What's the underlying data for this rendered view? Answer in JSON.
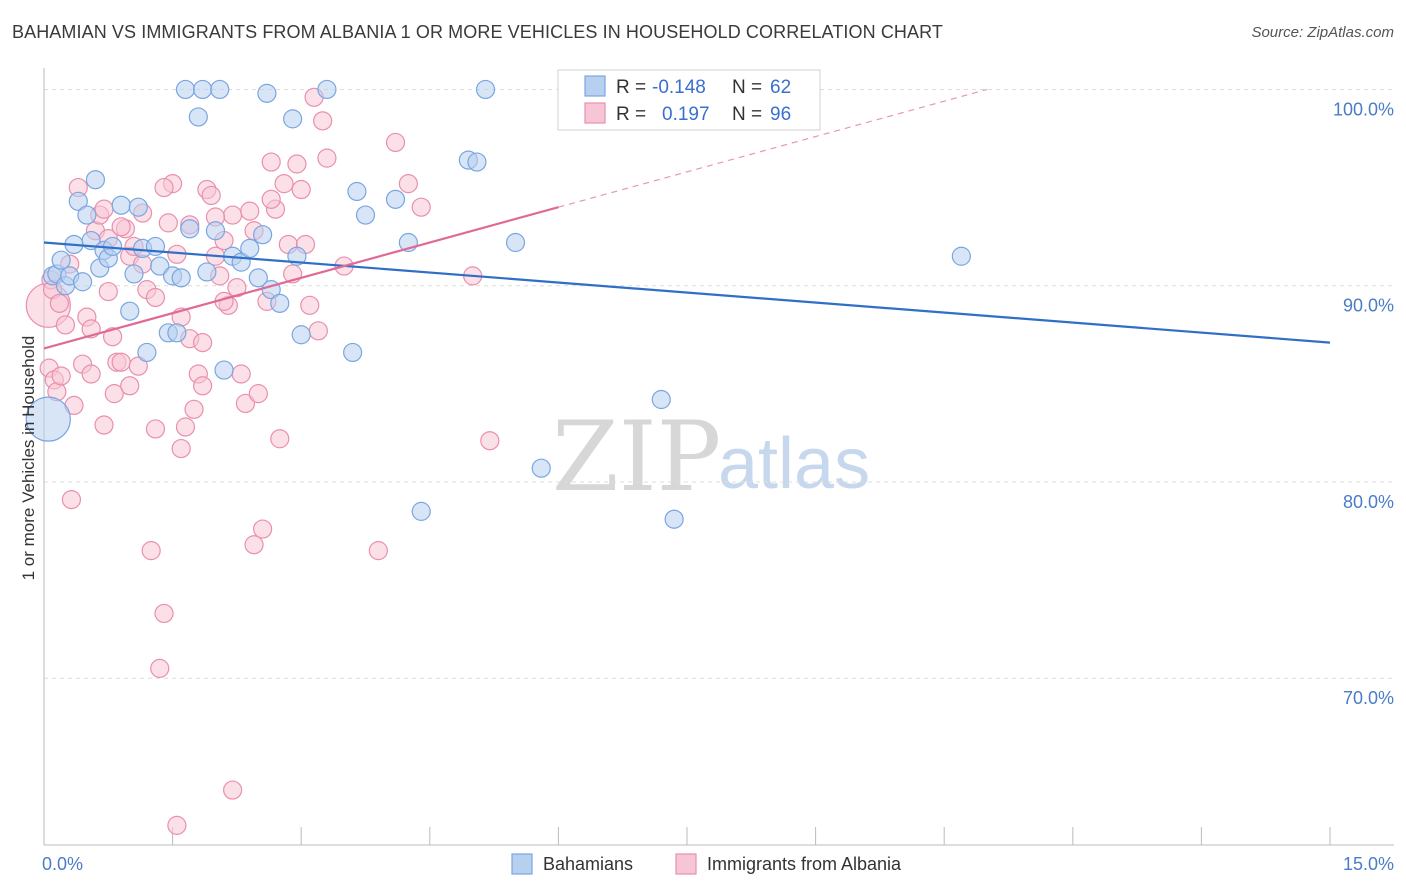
{
  "header": {
    "title": "BAHAMIAN VS IMMIGRANTS FROM ALBANIA 1 OR MORE VEHICLES IN HOUSEHOLD CORRELATION CHART",
    "source": "Source: ZipAtlas.com"
  },
  "watermark": {
    "zip": "ZIP",
    "atlas": "atlas"
  },
  "legend_top": {
    "rows": [
      {
        "r_label": "R =",
        "r_value": "-0.148",
        "n_label": "N =",
        "n_value": "62"
      },
      {
        "r_label": "R =",
        "r_value": "0.197",
        "n_label": "N =",
        "n_value": "96"
      }
    ]
  },
  "legend_bottom": {
    "series_a": "Bahamians",
    "series_b": "Immigrants from Albania"
  },
  "colors": {
    "blue_fill": "#b8d0f0",
    "blue_stroke": "#7aa6e0",
    "blue_line": "#2f6fc7",
    "pink_fill": "#f7c6d6",
    "pink_stroke": "#ea8fae",
    "pink_line": "#e06a96",
    "grid": "#dcdcdc",
    "axis_label": "#4a7cc7"
  },
  "chart_data": {
    "type": "scatter",
    "title": "BAHAMIAN VS IMMIGRANTS FROM ALBANIA 1 OR MORE VEHICLES IN HOUSEHOLD CORRELATION CHART",
    "xlabel": "",
    "ylabel": "1 or more Vehicles in Household",
    "xlim": [
      0,
      15
    ],
    "ylim": [
      61.5,
      101.5
    ],
    "x_tick_labels": {
      "min": "0.0%",
      "max": "15.0%"
    },
    "y_ticks": [
      {
        "value": 70,
        "label": "70.0%"
      },
      {
        "value": 80,
        "label": "80.0%"
      },
      {
        "value": 90,
        "label": "90.0%"
      },
      {
        "value": 100,
        "label": "100.0%"
      }
    ],
    "series": [
      {
        "name": "Bahamians",
        "color": "blue",
        "r": -0.148,
        "n": 62,
        "trend": {
          "x0": 0,
          "y0": 92.2,
          "x1": 15,
          "y1": 87.1
        },
        "points": [
          [
            0.05,
            83.2,
            "big"
          ],
          [
            0.1,
            90.5
          ],
          [
            0.15,
            90.6
          ],
          [
            0.2,
            91.3
          ],
          [
            0.25,
            90.0
          ],
          [
            0.3,
            90.5
          ],
          [
            0.35,
            92.1
          ],
          [
            0.4,
            94.3
          ],
          [
            0.45,
            90.2
          ],
          [
            0.5,
            93.6
          ],
          [
            0.55,
            92.3
          ],
          [
            0.6,
            95.4
          ],
          [
            0.65,
            90.9
          ],
          [
            0.7,
            91.8
          ],
          [
            0.75,
            91.4
          ],
          [
            0.8,
            92.0
          ],
          [
            0.9,
            94.1
          ],
          [
            1.0,
            88.7
          ],
          [
            1.05,
            90.6
          ],
          [
            1.1,
            94.0
          ],
          [
            1.15,
            91.9
          ],
          [
            1.2,
            86.6
          ],
          [
            1.3,
            92.0
          ],
          [
            1.35,
            91.0
          ],
          [
            1.45,
            87.6
          ],
          [
            1.5,
            90.5
          ],
          [
            1.55,
            87.6
          ],
          [
            1.6,
            90.4
          ],
          [
            1.65,
            100.0
          ],
          [
            1.7,
            92.9
          ],
          [
            1.8,
            98.6
          ],
          [
            1.85,
            100.0
          ],
          [
            1.9,
            90.7
          ],
          [
            2.0,
            92.8
          ],
          [
            2.05,
            100.0
          ],
          [
            2.1,
            85.7
          ],
          [
            2.2,
            91.5
          ],
          [
            2.3,
            91.2
          ],
          [
            2.4,
            91.9
          ],
          [
            2.5,
            90.4
          ],
          [
            2.55,
            92.6
          ],
          [
            2.6,
            99.8
          ],
          [
            2.65,
            89.8
          ],
          [
            2.75,
            89.1
          ],
          [
            2.9,
            98.5
          ],
          [
            2.95,
            91.5
          ],
          [
            3.0,
            87.5
          ],
          [
            3.3,
            100.0
          ],
          [
            3.6,
            86.6
          ],
          [
            3.65,
            94.8
          ],
          [
            3.75,
            93.6
          ],
          [
            4.1,
            94.4
          ],
          [
            4.25,
            92.2
          ],
          [
            4.95,
            96.4
          ],
          [
            5.05,
            96.3
          ],
          [
            5.15,
            100.0
          ],
          [
            5.5,
            92.2
          ],
          [
            5.8,
            80.7
          ],
          [
            4.4,
            78.5
          ],
          [
            7.2,
            84.2
          ],
          [
            7.35,
            78.1
          ],
          [
            10.7,
            91.5
          ]
        ]
      },
      {
        "name": "Immigrants from Albania",
        "color": "pink",
        "r": 0.197,
        "n": 96,
        "trend": {
          "x0": 0,
          "y0": 86.8,
          "x1": 6.0,
          "y1": 94.0,
          "dash_to_x": 11.0,
          "dash_to_y": 100.0
        },
        "points": [
          [
            0.05,
            89.0,
            "big"
          ],
          [
            0.06,
            85.8
          ],
          [
            0.08,
            90.3
          ],
          [
            0.1,
            89.8
          ],
          [
            0.12,
            85.2
          ],
          [
            0.15,
            84.6
          ],
          [
            0.18,
            89.1
          ],
          [
            0.2,
            85.4
          ],
          [
            0.25,
            88.0
          ],
          [
            0.3,
            91.1
          ],
          [
            0.32,
            79.1
          ],
          [
            0.35,
            83.9
          ],
          [
            0.4,
            95.0
          ],
          [
            0.45,
            86.0
          ],
          [
            0.5,
            88.4
          ],
          [
            0.55,
            87.8
          ],
          [
            0.6,
            92.8
          ],
          [
            0.65,
            93.6
          ],
          [
            0.7,
            93.9
          ],
          [
            0.75,
            92.4
          ],
          [
            0.8,
            87.4
          ],
          [
            0.82,
            84.5
          ],
          [
            0.85,
            86.1
          ],
          [
            0.9,
            86.1
          ],
          [
            0.95,
            92.9
          ],
          [
            1.0,
            91.5
          ],
          [
            1.05,
            92.0
          ],
          [
            1.1,
            85.9
          ],
          [
            1.15,
            93.7
          ],
          [
            1.2,
            89.8
          ],
          [
            1.25,
            76.5
          ],
          [
            1.3,
            89.4
          ],
          [
            1.35,
            70.5
          ],
          [
            1.4,
            73.3
          ],
          [
            1.45,
            93.2
          ],
          [
            1.5,
            95.2
          ],
          [
            1.55,
            91.6
          ],
          [
            1.6,
            88.4
          ],
          [
            1.65,
            82.8
          ],
          [
            1.7,
            87.3
          ],
          [
            1.75,
            83.7
          ],
          [
            1.8,
            85.5
          ],
          [
            1.85,
            87.1
          ],
          [
            1.9,
            94.9
          ],
          [
            1.95,
            94.6
          ],
          [
            2.0,
            91.5
          ],
          [
            2.05,
            90.5
          ],
          [
            2.1,
            92.3
          ],
          [
            2.15,
            89.0
          ],
          [
            2.2,
            93.6
          ],
          [
            2.25,
            89.9
          ],
          [
            2.3,
            85.5
          ],
          [
            2.35,
            84.0
          ],
          [
            2.4,
            93.8
          ],
          [
            2.45,
            76.8
          ],
          [
            2.5,
            84.5
          ],
          [
            2.55,
            77.6
          ],
          [
            2.6,
            89.2
          ],
          [
            2.65,
            96.3
          ],
          [
            2.7,
            93.9
          ],
          [
            2.75,
            82.2
          ],
          [
            2.8,
            95.2
          ],
          [
            2.85,
            92.1
          ],
          [
            2.9,
            90.6
          ],
          [
            2.95,
            96.2
          ],
          [
            3.0,
            94.9
          ],
          [
            3.05,
            92.1
          ],
          [
            3.1,
            89.0
          ],
          [
            3.15,
            99.6
          ],
          [
            3.2,
            87.7
          ],
          [
            3.25,
            98.4
          ],
          [
            3.3,
            96.5
          ],
          [
            3.5,
            91.0
          ],
          [
            3.9,
            76.5
          ],
          [
            4.1,
            97.3
          ],
          [
            4.25,
            95.2
          ],
          [
            4.4,
            94.0
          ],
          [
            5.0,
            90.5
          ],
          [
            5.2,
            82.1
          ],
          [
            1.55,
            62.5
          ],
          [
            2.2,
            64.3
          ],
          [
            0.7,
            82.9
          ],
          [
            1.0,
            84.9
          ],
          [
            1.3,
            82.7
          ],
          [
            1.6,
            81.7
          ],
          [
            1.85,
            84.9
          ],
          [
            2.45,
            92.8
          ],
          [
            0.9,
            93.0
          ],
          [
            1.15,
            91.1
          ],
          [
            1.7,
            93.1
          ],
          [
            2.0,
            93.5
          ],
          [
            2.65,
            94.4
          ],
          [
            0.55,
            85.5
          ],
          [
            0.75,
            89.7
          ],
          [
            1.4,
            95.0
          ],
          [
            2.1,
            89.2
          ]
        ]
      }
    ]
  }
}
